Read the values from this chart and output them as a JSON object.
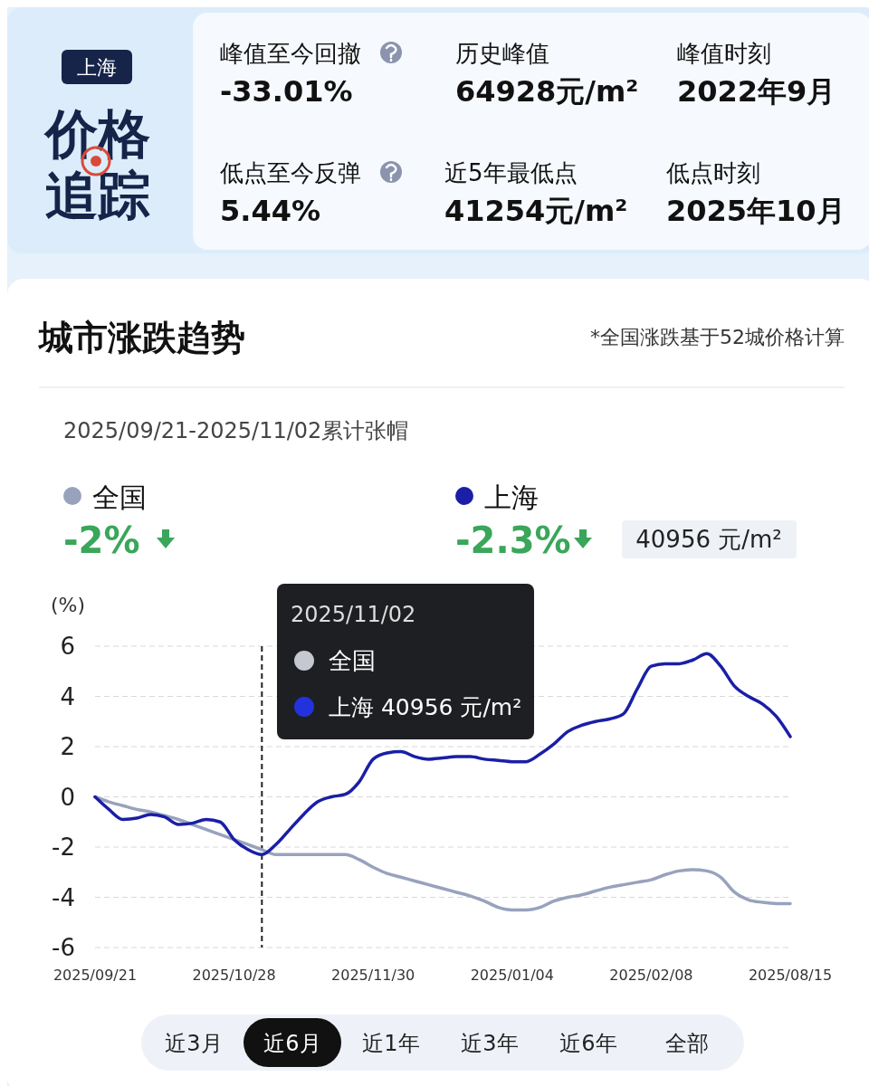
{
  "chart_data": [
    {
      "type": "other",
      "title": "价格追踪",
      "subtitle": "上海",
      "annotations": [
        "峰值至今回撤",
        "-33.01%",
        "历史峰值",
        "64928元/m²",
        "峰值时刻",
        "2022年9月",
        "低点至今反弹",
        "5.44%",
        "近5年最低点",
        "41254元/m²",
        "低点时刻",
        "2025年10月"
      ]
    },
    {
      "type": "line",
      "title": "城市涨跌趋势",
      "subtitle": "2025/09/21-2025/11/02累计张帽",
      "ylabel": "(%)",
      "categories": [
        "2025/09/21",
        null,
        null,
        null,
        null,
        null,
        null,
        null,
        null,
        null,
        "2025/10/28",
        null,
        null,
        null,
        null,
        null,
        null,
        null,
        null,
        null,
        "2025/11/30",
        null,
        null,
        null,
        null,
        null,
        null,
        null,
        null,
        null,
        "2025/01/04",
        null,
        null,
        null,
        null,
        null,
        null,
        null,
        null,
        null,
        "2025/02/08",
        null,
        null,
        null,
        null,
        null,
        null,
        null,
        null,
        null,
        "2025/08/15"
      ],
      "series": [
        {
          "name": "全国",
          "color": "#98a2bd",
          "values": [
            0,
            -0.2,
            -0.35,
            -0.5,
            -0.6,
            -0.75,
            -0.9,
            -1.1,
            -1.3,
            -1.5,
            -1.7,
            -1.9,
            -2.1,
            -2.3,
            -2.3,
            -2.3,
            -2.3,
            -2.3,
            -2.3,
            -2.5,
            -2.8,
            -3.05,
            -3.2,
            -3.35,
            -3.5,
            -3.65,
            -3.8,
            -3.95,
            -4.15,
            -4.4,
            -4.5,
            -4.5,
            -4.4,
            -4.15,
            -4,
            -3.9,
            -3.75,
            -3.6,
            -3.5,
            -3.4,
            -3.3,
            -3.1,
            -2.95,
            -2.9,
            -2.95,
            -3.2,
            -3.8,
            -4.1,
            -4.2,
            -4.25,
            -4.25
          ]
        },
        {
          "name": "上海",
          "color": "#1a1fa6",
          "values": [
            0,
            -0.5,
            -0.9,
            -0.85,
            -0.7,
            -0.8,
            -1.1,
            -1.05,
            -0.9,
            -1,
            -1.7,
            -2.1,
            -2.3,
            -1.9,
            -1.3,
            -0.7,
            -0.2,
            0,
            0.1,
            0.6,
            1.5,
            1.75,
            1.8,
            1.6,
            1.5,
            1.55,
            1.6,
            1.6,
            1.5,
            1.45,
            1.4,
            1.4,
            1.7,
            2.1,
            2.6,
            2.85,
            3,
            3.1,
            3.3,
            4.3,
            5.2,
            5.3,
            5.3,
            5.45,
            5.7,
            5.2,
            4.4,
            4,
            3.7,
            3.2,
            2.4
          ]
        }
      ],
      "ylim": [
        -6,
        6
      ],
      "yticks": [
        -6,
        -4,
        -2,
        0,
        2,
        4,
        6
      ],
      "grid": "y",
      "legend": "top",
      "marker": "none",
      "line_style": "solid",
      "annotations": [
        "*全国涨跌基于52城价格计算",
        "-2%",
        "-2.3%",
        "40956 元/m²",
        "2025/11/02",
        "全国",
        "上海 40956 元/m²",
        "近3月",
        "近6月",
        "近1年",
        "近3年",
        "近6年",
        "全部"
      ]
    }
  ]
}
